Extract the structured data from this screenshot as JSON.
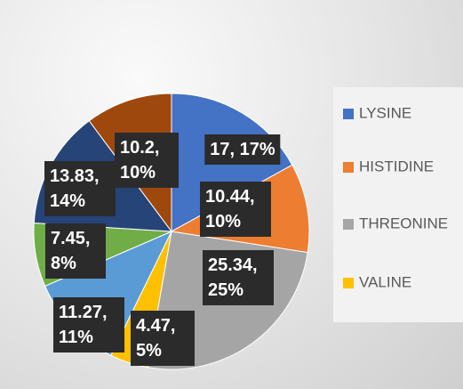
{
  "chart_data": {
    "type": "pie",
    "categories": [
      "LYSINE",
      "HISTIDINE",
      "THREONINE",
      "VALINE",
      null,
      null,
      null,
      null
    ],
    "values": [
      17,
      10.44,
      25.34,
      4.47,
      11.27,
      7.45,
      13.83,
      10.2
    ],
    "value_labels": [
      "17, 17%",
      "10.44, 10%",
      "25.34, 25%",
      "4.47, 5%",
      "11.27, 11%",
      "7.45, 8%",
      "13.83, 14%",
      "10.2, 10%"
    ],
    "colors": [
      "#4472c4",
      "#ed7d31",
      "#a5a5a5",
      "#ffc000",
      "#5b9bd5",
      "#70ad47",
      "#264478",
      "#9e480e"
    ]
  }
}
